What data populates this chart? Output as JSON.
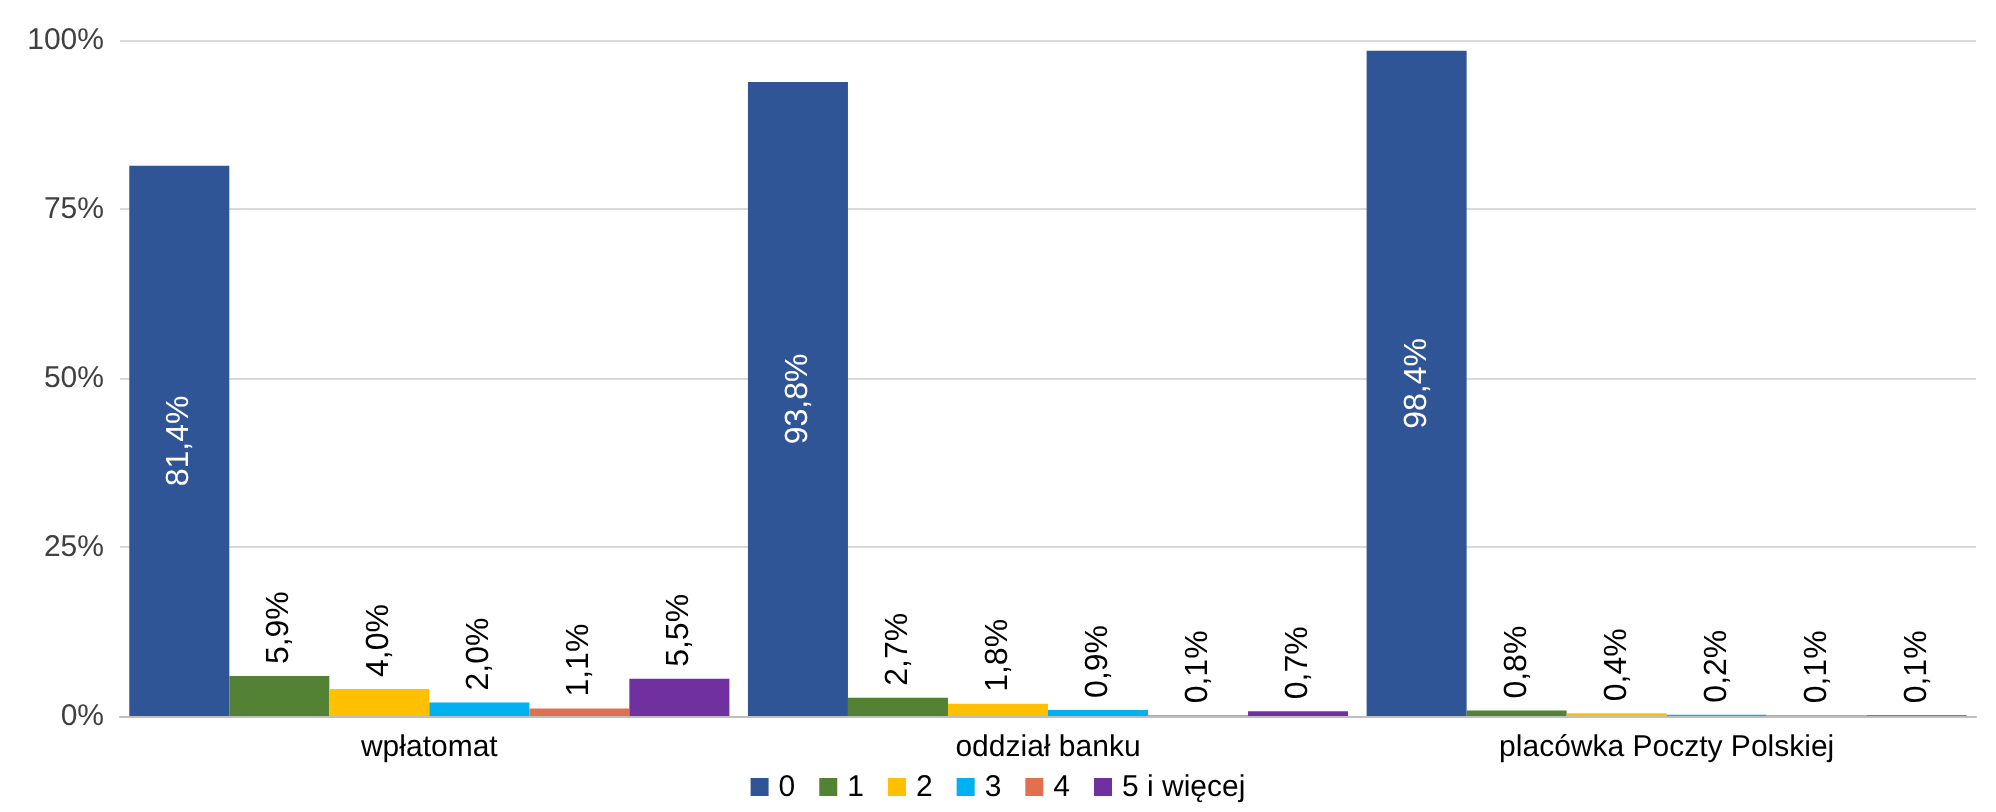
{
  "chart_data": {
    "type": "bar",
    "categories": [
      "wpłatomat",
      "oddział banku",
      "placówka Poczty Polskiej"
    ],
    "series": [
      {
        "name": "0",
        "color": "#2f5597",
        "values": [
          81.4,
          93.8,
          98.4
        ],
        "value_labels": [
          "81,4%",
          "93,8%",
          "98,4%"
        ]
      },
      {
        "name": "1",
        "color": "#548235",
        "values": [
          5.9,
          2.7,
          0.8
        ],
        "value_labels": [
          "5,9%",
          "2,7%",
          "0,8%"
        ]
      },
      {
        "name": "2",
        "color": "#ffc000",
        "values": [
          4.0,
          1.8,
          0.4
        ],
        "value_labels": [
          "4,0%",
          "1,8%",
          "0,4%"
        ]
      },
      {
        "name": "3",
        "color": "#00b0f0",
        "values": [
          2.0,
          0.9,
          0.2
        ],
        "value_labels": [
          "2,0%",
          "0,9%",
          "0,2%"
        ]
      },
      {
        "name": "4",
        "color": "#e07050",
        "values": [
          1.1,
          0.1,
          0.1
        ],
        "value_labels": [
          "1,1%",
          "0,1%",
          "0,1%"
        ]
      },
      {
        "name": "5 i więcej",
        "color": "#7030a0",
        "values": [
          5.5,
          0.7,
          0.1
        ],
        "value_labels": [
          "5,5%",
          "0,7%",
          "0,1%"
        ]
      }
    ],
    "ylim": [
      0,
      100
    ],
    "yticks": [
      {
        "value": 0,
        "label": "0%"
      },
      {
        "value": 25,
        "label": "25%"
      },
      {
        "value": 50,
        "label": "50%"
      },
      {
        "value": 75,
        "label": "75%"
      },
      {
        "value": 100,
        "label": "100%"
      }
    ],
    "grid": "y",
    "legend": "bottom"
  }
}
